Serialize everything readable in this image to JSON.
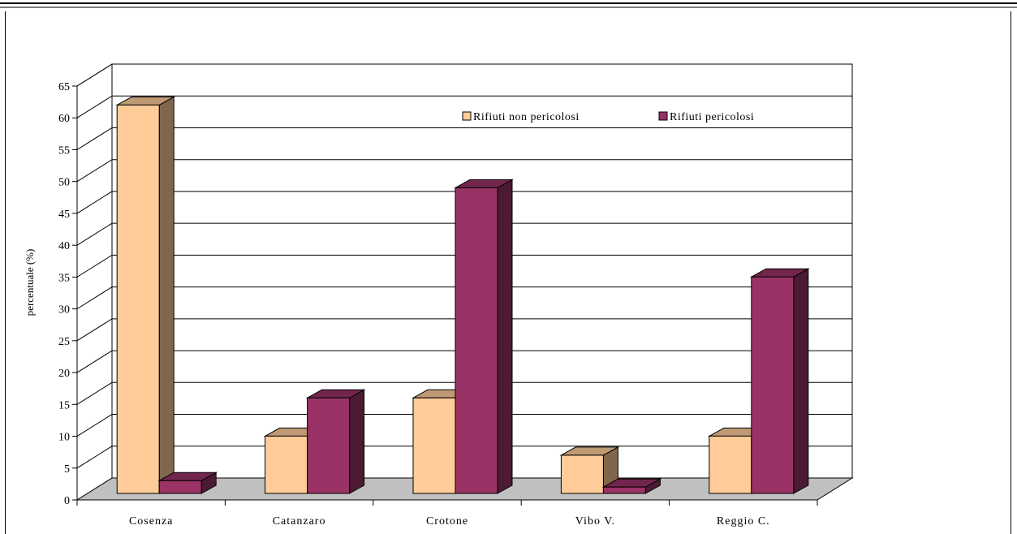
{
  "chart_data": {
    "type": "bar",
    "title": "",
    "xlabel": "",
    "ylabel": "percentuale (%)",
    "ylim": [
      0,
      65
    ],
    "yticks": [
      0,
      5,
      10,
      15,
      20,
      25,
      30,
      35,
      40,
      45,
      50,
      55,
      60,
      65
    ],
    "grid": true,
    "legend_position": "top-right",
    "categories": [
      "Cosenza",
      "Catanzaro",
      "Crotone",
      "Vibo V.",
      "Reggio C."
    ],
    "series": [
      {
        "name": "Rifiuti non pericolosi",
        "color": "#FFCC99",
        "side_color": "#7F664D",
        "top_color": "#BF9973",
        "values": [
          61,
          9,
          15,
          6,
          9
        ]
      },
      {
        "name": "Rifiuti pericolosi",
        "color": "#993366",
        "side_color": "#4C1A33",
        "top_color": "#73264D",
        "values": [
          2,
          15,
          48,
          1,
          34
        ]
      }
    ]
  }
}
